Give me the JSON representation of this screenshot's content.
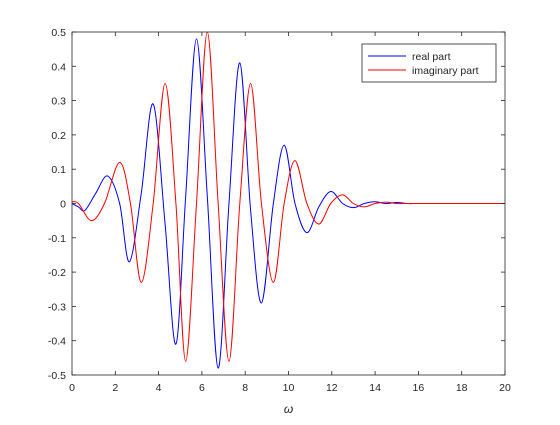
{
  "chart_data": {
    "type": "line",
    "title": "",
    "xlabel": "ω",
    "ylabel": "",
    "xlim": [
      0,
      20
    ],
    "ylim": [
      -0.5,
      0.5
    ],
    "xticks": [
      0,
      2,
      4,
      6,
      8,
      10,
      12,
      14,
      16,
      18,
      20
    ],
    "yticks": [
      -0.5,
      -0.4,
      -0.3,
      -0.2,
      -0.1,
      0,
      0.1,
      0.2,
      0.3,
      0.4,
      0.5
    ],
    "xtick_labels": [
      "0",
      "2",
      "4",
      "6",
      "8",
      "10",
      "12",
      "14",
      "16",
      "18",
      "20"
    ],
    "ytick_labels": [
      "-0.5",
      "-0.4",
      "-0.3",
      "-0.2",
      "-0.1",
      "0",
      "0.1",
      "0.2",
      "0.3",
      "0.4",
      "0.5"
    ],
    "grid": false,
    "legend_position": "top-right",
    "series": [
      {
        "name": "real part",
        "color": "#0000ff",
        "x": [
          0,
          0.3,
          0.6,
          1.1,
          1.65,
          2.2,
          2.65,
          3.2,
          3.75,
          4.3,
          4.8,
          5.25,
          5.75,
          6.25,
          6.75,
          7.25,
          7.75,
          8.25,
          8.75,
          9.3,
          9.8,
          10.3,
          10.85,
          11.4,
          11.95,
          12.5,
          13.0,
          13.5,
          14.0,
          14.5,
          15.0,
          15.5,
          16,
          17,
          18,
          19,
          20
        ],
        "y": [
          0.0,
          -0.01,
          -0.02,
          0.03,
          0.08,
          0.0,
          -0.17,
          0.03,
          0.29,
          -0.06,
          -0.41,
          0.02,
          0.48,
          0.02,
          -0.48,
          0.0,
          0.41,
          -0.02,
          -0.29,
          0.0,
          0.17,
          0.0,
          -0.085,
          -0.01,
          0.035,
          0.0,
          -0.012,
          0.0,
          0.005,
          0.0,
          0.003,
          0.0,
          0.0,
          0.0,
          0.0,
          0.0,
          0.0
        ]
      },
      {
        "name": "imaginary part",
        "color": "#ff0000",
        "x": [
          0,
          0.3,
          0.9,
          1.5,
          2.2,
          2.7,
          3.2,
          3.75,
          4.3,
          4.8,
          5.25,
          5.75,
          6.25,
          6.75,
          7.25,
          7.75,
          8.25,
          8.75,
          9.3,
          9.8,
          10.3,
          10.85,
          11.4,
          11.95,
          12.5,
          13.0,
          13.5,
          14.0,
          14.5,
          15.0,
          15.5,
          16,
          17,
          18,
          19,
          20
        ],
        "y": [
          0.005,
          0.0,
          -0.05,
          0.0,
          0.12,
          0.0,
          -0.23,
          0.0,
          0.35,
          0.0,
          -0.46,
          0.0,
          0.5,
          0.0,
          -0.46,
          0.0,
          0.35,
          0.0,
          -0.23,
          0.0,
          0.125,
          0.0,
          -0.06,
          0.0,
          0.025,
          0.0,
          -0.01,
          0.0,
          0.004,
          0.0,
          0.0,
          0.0,
          0.0,
          0.0,
          0.0,
          0.0
        ]
      }
    ]
  }
}
